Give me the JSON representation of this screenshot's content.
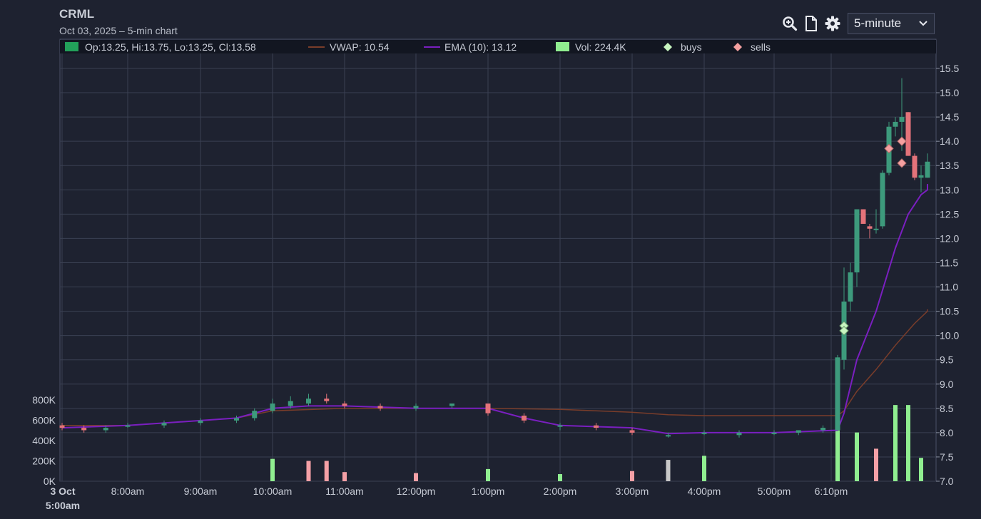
{
  "header": {
    "title": "CRML",
    "subtitle": "Oct 03, 2025 – 5-min chart"
  },
  "toolbar": {
    "zoom_icon": "zoom-in-icon",
    "doc_icon": "document-icon",
    "settings_icon": "gear-icon",
    "interval_value": "5-minute"
  },
  "legend": {
    "ohlc": "Op:13.25, Hi:13.75, Lo:13.25, Cl:13.58",
    "vwap": "VWAP: 10.54",
    "ema": "EMA (10): 13.12",
    "vol": "Vol: 224.4K",
    "buys": "buys",
    "sells": "sells"
  },
  "colors": {
    "up": "#3d9a7c",
    "down": "#e4737a",
    "vwap": "#7a3d2a",
    "ema": "#7a1fc0",
    "vol_up": "#90ee90",
    "vol_down": "#f4a0a6",
    "vol_neutral": "#c8c8c8",
    "buy_marker": "#c8f5c0",
    "sell_marker": "#f4a0a0",
    "grid": "#3a4052"
  },
  "chart_data": {
    "type": "candlestick",
    "y_axis": {
      "range": [
        7.0,
        15.5
      ],
      "ticks": [
        "15.5",
        "15.0",
        "14.5",
        "14.0",
        "13.5",
        "13.0",
        "12.5",
        "12.0",
        "11.5",
        "11.0",
        "10.5",
        "10.0",
        "9.5",
        "9.0",
        "8.5",
        "8.0",
        "7.5",
        "7.0"
      ]
    },
    "volume_axis": {
      "range": [
        0,
        800000
      ],
      "ticks": [
        "800K",
        "600K",
        "400K",
        "200K",
        "0K"
      ]
    },
    "x_axis": {
      "ticks": [
        {
          "time": "5:00",
          "label1": "3 Oct",
          "label2": "5:00am"
        },
        {
          "time": "8:00",
          "label1": "8:00am"
        },
        {
          "time": "9:00",
          "label1": "9:00am"
        },
        {
          "time": "10:00",
          "label1": "10:00am"
        },
        {
          "time": "11:00",
          "label1": "11:00am"
        },
        {
          "time": "12:00",
          "label1": "12:00pm"
        },
        {
          "time": "13:00",
          "label1": "1:00pm"
        },
        {
          "time": "14:00",
          "label1": "2:00pm"
        },
        {
          "time": "15:00",
          "label1": "3:00pm"
        },
        {
          "time": "16:00",
          "label1": "4:00pm"
        },
        {
          "time": "17:00",
          "label1": "5:00pm"
        },
        {
          "time": "18:10",
          "label1": "6:10pm"
        }
      ]
    },
    "grid": true,
    "series": [
      {
        "name": "price",
        "style": "candles"
      },
      {
        "name": "VWAP",
        "values": [
          {
            "t": "5:00",
            "y": 8.15
          },
          {
            "t": "8:00",
            "y": 8.15
          },
          {
            "t": "9:00",
            "y": 8.25
          },
          {
            "t": "9:30",
            "y": 8.3
          },
          {
            "t": "10:00",
            "y": 8.45
          },
          {
            "t": "11:00",
            "y": 8.5
          },
          {
            "t": "12:00",
            "y": 8.5
          },
          {
            "t": "13:00",
            "y": 8.5
          },
          {
            "t": "14:00",
            "y": 8.48
          },
          {
            "t": "15:00",
            "y": 8.42
          },
          {
            "t": "15:30",
            "y": 8.37
          },
          {
            "t": "16:00",
            "y": 8.35
          },
          {
            "t": "17:00",
            "y": 8.35
          },
          {
            "t": "18:15",
            "y": 8.35
          },
          {
            "t": "18:20",
            "y": 8.45
          },
          {
            "t": "18:30",
            "y": 8.85
          },
          {
            "t": "18:45",
            "y": 9.3
          },
          {
            "t": "19:00",
            "y": 9.8
          },
          {
            "t": "19:15",
            "y": 10.25
          },
          {
            "t": "19:30",
            "y": 10.5
          },
          {
            "t": "19:40",
            "y": 10.54
          }
        ]
      },
      {
        "name": "EMA (10)",
        "values": [
          {
            "t": "5:00",
            "y": 8.1
          },
          {
            "t": "8:00",
            "y": 8.15
          },
          {
            "t": "9:00",
            "y": 8.25
          },
          {
            "t": "9:30",
            "y": 8.3
          },
          {
            "t": "10:00",
            "y": 8.5
          },
          {
            "t": "10:30",
            "y": 8.55
          },
          {
            "t": "11:00",
            "y": 8.55
          },
          {
            "t": "12:00",
            "y": 8.5
          },
          {
            "t": "13:00",
            "y": 8.5
          },
          {
            "t": "13:30",
            "y": 8.3
          },
          {
            "t": "14:00",
            "y": 8.15
          },
          {
            "t": "15:00",
            "y": 8.1
          },
          {
            "t": "15:30",
            "y": 7.98
          },
          {
            "t": "16:00",
            "y": 8.0
          },
          {
            "t": "17:00",
            "y": 8.0
          },
          {
            "t": "18:15",
            "y": 8.05
          },
          {
            "t": "18:20",
            "y": 8.4
          },
          {
            "t": "18:30",
            "y": 9.5
          },
          {
            "t": "18:45",
            "y": 10.5
          },
          {
            "t": "19:00",
            "y": 11.8
          },
          {
            "t": "19:10",
            "y": 12.5
          },
          {
            "t": "19:20",
            "y": 12.9
          },
          {
            "t": "19:30",
            "y": 13.0
          },
          {
            "t": "19:40",
            "y": 13.12
          }
        ]
      }
    ],
    "candles": [
      {
        "t": "5:00",
        "o": 8.15,
        "h": 8.2,
        "l": 8.05,
        "c": 8.1
      },
      {
        "t": "6:00",
        "o": 8.1,
        "h": 8.15,
        "l": 8.0,
        "c": 8.05
      },
      {
        "t": "7:00",
        "o": 8.05,
        "h": 8.15,
        "l": 8.0,
        "c": 8.1
      },
      {
        "t": "8:00",
        "o": 8.15,
        "h": 8.2,
        "l": 8.1,
        "c": 8.15
      },
      {
        "t": "8:30",
        "o": 8.15,
        "h": 8.25,
        "l": 8.1,
        "c": 8.2
      },
      {
        "t": "9:00",
        "o": 8.2,
        "h": 8.3,
        "l": 8.15,
        "c": 8.25
      },
      {
        "t": "9:30",
        "o": 8.25,
        "h": 8.35,
        "l": 8.2,
        "c": 8.3
      },
      {
        "t": "9:45",
        "o": 8.3,
        "h": 8.5,
        "l": 8.25,
        "c": 8.45
      },
      {
        "t": "10:00",
        "o": 8.45,
        "h": 8.7,
        "l": 8.4,
        "c": 8.6
      },
      {
        "t": "10:15",
        "o": 8.55,
        "h": 8.75,
        "l": 8.5,
        "c": 8.65
      },
      {
        "t": "10:30",
        "o": 8.6,
        "h": 8.8,
        "l": 8.55,
        "c": 8.7
      },
      {
        "t": "10:45",
        "o": 8.7,
        "h": 8.8,
        "l": 8.6,
        "c": 8.65
      },
      {
        "t": "11:00",
        "o": 8.6,
        "h": 8.65,
        "l": 8.5,
        "c": 8.55
      },
      {
        "t": "11:30",
        "o": 8.55,
        "h": 8.6,
        "l": 8.45,
        "c": 8.5
      },
      {
        "t": "12:00",
        "o": 8.5,
        "h": 8.6,
        "l": 8.45,
        "c": 8.55
      },
      {
        "t": "12:30",
        "o": 8.55,
        "h": 8.6,
        "l": 8.5,
        "c": 8.6
      },
      {
        "t": "13:00",
        "o": 8.6,
        "h": 8.6,
        "l": 8.35,
        "c": 8.4
      },
      {
        "t": "13:30",
        "o": 8.35,
        "h": 8.4,
        "l": 8.2,
        "c": 8.25
      },
      {
        "t": "14:00",
        "o": 8.15,
        "h": 8.2,
        "l": 8.05,
        "c": 8.15
      },
      {
        "t": "14:30",
        "o": 8.15,
        "h": 8.2,
        "l": 8.05,
        "c": 8.1
      },
      {
        "t": "15:00",
        "o": 8.05,
        "h": 8.1,
        "l": 7.95,
        "c": 8.0
      },
      {
        "t": "15:30",
        "o": 7.95,
        "h": 8.0,
        "l": 7.9,
        "c": 7.95
      },
      {
        "t": "16:00",
        "o": 8.0,
        "h": 8.05,
        "l": 7.95,
        "c": 8.0
      },
      {
        "t": "16:30",
        "o": 7.95,
        "h": 8.05,
        "l": 7.9,
        "c": 8.0
      },
      {
        "t": "17:00",
        "o": 8.0,
        "h": 8.05,
        "l": 7.95,
        "c": 8.0
      },
      {
        "t": "17:30",
        "o": 8.0,
        "h": 8.05,
        "l": 7.95,
        "c": 8.05
      },
      {
        "t": "18:00",
        "o": 8.05,
        "h": 8.15,
        "l": 8.0,
        "c": 8.1
      },
      {
        "t": "18:15",
        "o": 8.05,
        "h": 9.6,
        "l": 8.05,
        "c": 9.55
      },
      {
        "t": "18:20",
        "o": 9.5,
        "h": 11.4,
        "l": 9.3,
        "c": 10.7
      },
      {
        "t": "18:25",
        "o": 10.7,
        "h": 11.5,
        "l": 10.5,
        "c": 11.3
      },
      {
        "t": "18:30",
        "o": 11.3,
        "h": 12.6,
        "l": 11.0,
        "c": 12.6
      },
      {
        "t": "18:35",
        "o": 12.6,
        "h": 12.6,
        "l": 12.3,
        "c": 12.3
      },
      {
        "t": "18:40",
        "o": 12.25,
        "h": 12.3,
        "l": 12.0,
        "c": 12.2
      },
      {
        "t": "18:45",
        "o": 12.2,
        "h": 12.6,
        "l": 12.1,
        "c": 12.2
      },
      {
        "t": "18:50",
        "o": 12.25,
        "h": 13.4,
        "l": 12.2,
        "c": 13.35
      },
      {
        "t": "18:55",
        "o": 13.35,
        "h": 14.4,
        "l": 13.3,
        "c": 14.3
      },
      {
        "t": "19:00",
        "o": 14.3,
        "h": 14.5,
        "l": 14.1,
        "c": 14.4
      },
      {
        "t": "19:05",
        "o": 14.4,
        "h": 15.3,
        "l": 13.8,
        "c": 14.5
      },
      {
        "t": "19:10",
        "o": 14.6,
        "h": 14.6,
        "l": 13.7,
        "c": 13.7
      },
      {
        "t": "19:15",
        "o": 13.7,
        "h": 13.75,
        "l": 13.2,
        "c": 13.25
      },
      {
        "t": "19:20",
        "o": 13.25,
        "h": 13.5,
        "l": 12.95,
        "c": 13.3
      },
      {
        "t": "19:25",
        "o": 13.25,
        "h": 13.75,
        "l": 13.25,
        "c": 13.58
      }
    ],
    "volume": [
      {
        "t": "10:00",
        "v": 220000,
        "dir": "up"
      },
      {
        "t": "10:30",
        "v": 200000,
        "dir": "down"
      },
      {
        "t": "10:45",
        "v": 200000,
        "dir": "down"
      },
      {
        "t": "11:00",
        "v": 90000,
        "dir": "down"
      },
      {
        "t": "12:00",
        "v": 80000,
        "dir": "down"
      },
      {
        "t": "13:00",
        "v": 120000,
        "dir": "up"
      },
      {
        "t": "14:00",
        "v": 70000,
        "dir": "up"
      },
      {
        "t": "15:00",
        "v": 100000,
        "dir": "down"
      },
      {
        "t": "15:30",
        "v": 210000,
        "dir": "neutral"
      },
      {
        "t": "16:00",
        "v": 250000,
        "dir": "up"
      },
      {
        "t": "18:15",
        "v": 500000,
        "dir": "up"
      },
      {
        "t": "18:30",
        "v": 480000,
        "dir": "up"
      },
      {
        "t": "18:45",
        "v": 320000,
        "dir": "down"
      },
      {
        "t": "19:00",
        "v": 750000,
        "dir": "up"
      },
      {
        "t": "19:10",
        "v": 750000,
        "dir": "up"
      },
      {
        "t": "19:20",
        "v": 230000,
        "dir": "up"
      }
    ],
    "buys": [
      {
        "t": "18:20",
        "y": 10.2
      },
      {
        "t": "18:20",
        "y": 10.1
      }
    ],
    "sells": [
      {
        "t": "18:55",
        "y": 13.85
      },
      {
        "t": "19:05",
        "y": 14.0
      },
      {
        "t": "19:05",
        "y": 13.55
      }
    ]
  }
}
